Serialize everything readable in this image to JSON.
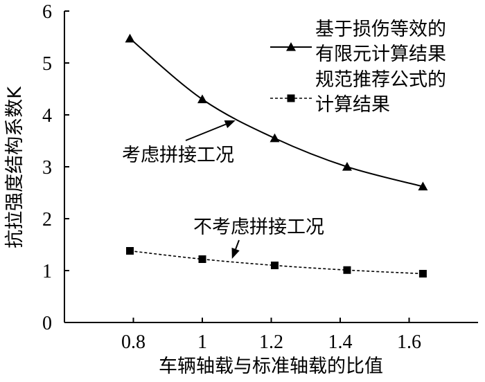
{
  "chart_data": {
    "type": "line",
    "xlabel": "车辆轴载与标准轴载的比值",
    "ylabel": "抗拉强度结构系数K",
    "xlim": [
      0.6,
      1.8
    ],
    "ylim": [
      0,
      6
    ],
    "xticks": [
      0.8,
      1,
      1.2,
      1.4,
      1.6
    ],
    "xtick_labels": [
      "0.8",
      "1",
      "1.2",
      "1.4",
      "1.6"
    ],
    "yticks": [
      0,
      1,
      2,
      3,
      4,
      5,
      6
    ],
    "ytick_labels": [
      "0",
      "1",
      "2",
      "3",
      "4",
      "5",
      "6"
    ],
    "grid": false,
    "legend_position": "top-right",
    "series": [
      {
        "name_lines": [
          "基于损伤等效的",
          "有限元计算结果"
        ],
        "marker": "triangle",
        "line_style": "solid",
        "x": [
          0.79,
          1.0,
          1.21,
          1.42,
          1.64
        ],
        "y": [
          5.47,
          4.3,
          3.55,
          3.0,
          2.62
        ]
      },
      {
        "name_lines": [
          "规范推荐公式的",
          "计算结果"
        ],
        "marker": "square",
        "line_style": "dashed",
        "x": [
          0.79,
          1.0,
          1.21,
          1.42,
          1.64
        ],
        "y": [
          1.38,
          1.22,
          1.1,
          1.01,
          0.94
        ]
      }
    ],
    "annotations": [
      {
        "text": "考虑拼接工况",
        "arrow_to": [
          1.09,
          4.0
        ]
      },
      {
        "text": "不考虑拼接工况",
        "arrow_to": [
          1.08,
          1.2
        ]
      }
    ]
  }
}
